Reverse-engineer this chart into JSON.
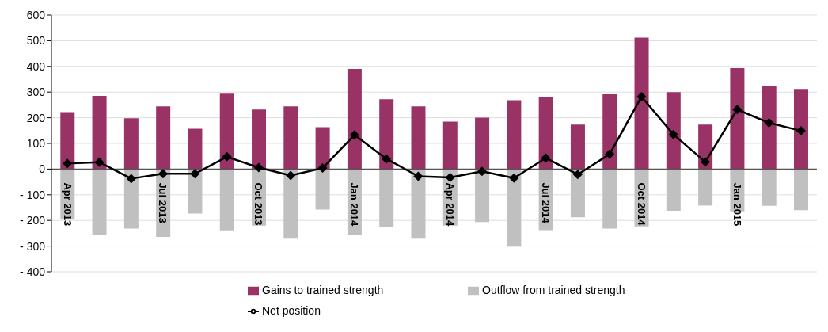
{
  "chart_data": {
    "type": "bar",
    "stacked": true,
    "categories": [
      "Apr 2013",
      null,
      null,
      "Jul 2013",
      null,
      null,
      "Oct 2013",
      null,
      null,
      "Jan 2014",
      null,
      null,
      "Apr 2014",
      null,
      null,
      "Jul 2014",
      null,
      null,
      "Oct 2014",
      null,
      null,
      "Jan 2015",
      null,
      null
    ],
    "series": [
      {
        "name": "Gains to trained strength",
        "color": "#993366",
        "values": [
          222,
          285,
          198,
          244,
          157,
          294,
          232,
          244,
          163,
          390,
          272,
          244,
          185,
          200,
          268,
          281,
          173,
          291,
          512,
          300,
          173,
          393,
          322,
          312
        ]
      },
      {
        "name": "Outflow from trained strength",
        "color": "#c0c0c0",
        "values": [
          -197,
          -257,
          -232,
          -264,
          -173,
          -239,
          -220,
          -268,
          -158,
          -255,
          -226,
          -268,
          -220,
          -206,
          -302,
          -238,
          -188,
          -232,
          -223,
          -162,
          -142,
          -165,
          -143,
          -160
        ]
      },
      {
        "name": "Net position",
        "type": "line",
        "color": "#000000",
        "marker": "diamond",
        "values": [
          22,
          27,
          -37,
          -18,
          -18,
          48,
          6,
          -25,
          4,
          133,
          40,
          -28,
          -33,
          -9,
          -35,
          43,
          -21,
          58,
          282,
          135,
          28,
          232,
          180,
          149
        ]
      }
    ],
    "ylim": [
      -400,
      600
    ],
    "yticks": [
      {
        "value": -400,
        "label": "- 400"
      },
      {
        "value": -300,
        "label": "- 300"
      },
      {
        "value": -200,
        "label": "- 200"
      },
      {
        "value": -100,
        "label": "- 100"
      },
      0,
      100,
      200,
      300,
      400,
      500,
      600
    ],
    "grid": "y",
    "legend": "bottom"
  }
}
